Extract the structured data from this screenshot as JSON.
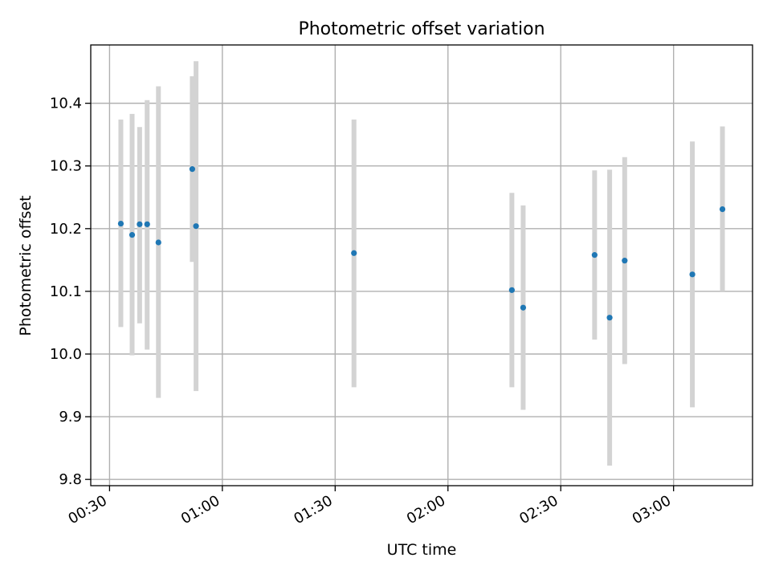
{
  "chart_data": {
    "type": "scatter",
    "title": "Photometric offset variation",
    "xlabel": "UTC time",
    "ylabel": "Photometric offset",
    "x_ticks": [
      "00:30",
      "01:00",
      "01:30",
      "02:00",
      "02:30",
      "03:00"
    ],
    "y_ticks": [
      "9.8",
      "9.9",
      "10.0",
      "10.1",
      "10.2",
      "10.3",
      "10.4"
    ],
    "xlim": [
      "00:25",
      "03:21"
    ],
    "ylim": [
      9.79,
      10.493
    ],
    "grid": true,
    "colors": {
      "point": "#1f77b4",
      "error_bar": "#d3d3d3",
      "grid": "#b0b0b0"
    },
    "points": [
      {
        "t": "00:33",
        "y": 10.208,
        "lo": 10.043,
        "hi": 10.374
      },
      {
        "t": "00:36",
        "y": 10.19,
        "lo": 9.998,
        "hi": 10.383
      },
      {
        "t": "00:38",
        "y": 10.207,
        "lo": 10.049,
        "hi": 10.362
      },
      {
        "t": "00:40",
        "y": 10.207,
        "lo": 10.007,
        "hi": 10.405
      },
      {
        "t": "00:43",
        "y": 10.178,
        "lo": 9.93,
        "hi": 10.427
      },
      {
        "t": "00:52",
        "y": 10.295,
        "lo": 10.147,
        "hi": 10.443
      },
      {
        "t": "00:53",
        "y": 10.204,
        "lo": 9.941,
        "hi": 10.467
      },
      {
        "t": "01:35",
        "y": 10.161,
        "lo": 9.947,
        "hi": 10.374
      },
      {
        "t": "02:17",
        "y": 10.102,
        "lo": 9.947,
        "hi": 10.257
      },
      {
        "t": "02:20",
        "y": 10.074,
        "lo": 9.911,
        "hi": 10.237
      },
      {
        "t": "02:39",
        "y": 10.158,
        "lo": 10.023,
        "hi": 10.293
      },
      {
        "t": "02:43",
        "y": 10.058,
        "lo": 9.822,
        "hi": 10.294
      },
      {
        "t": "02:47",
        "y": 10.149,
        "lo": 9.984,
        "hi": 10.314
      },
      {
        "t": "03:05",
        "y": 10.127,
        "lo": 9.915,
        "hi": 10.339
      },
      {
        "t": "03:13",
        "y": 10.231,
        "lo": 10.1,
        "hi": 10.363
      }
    ]
  }
}
